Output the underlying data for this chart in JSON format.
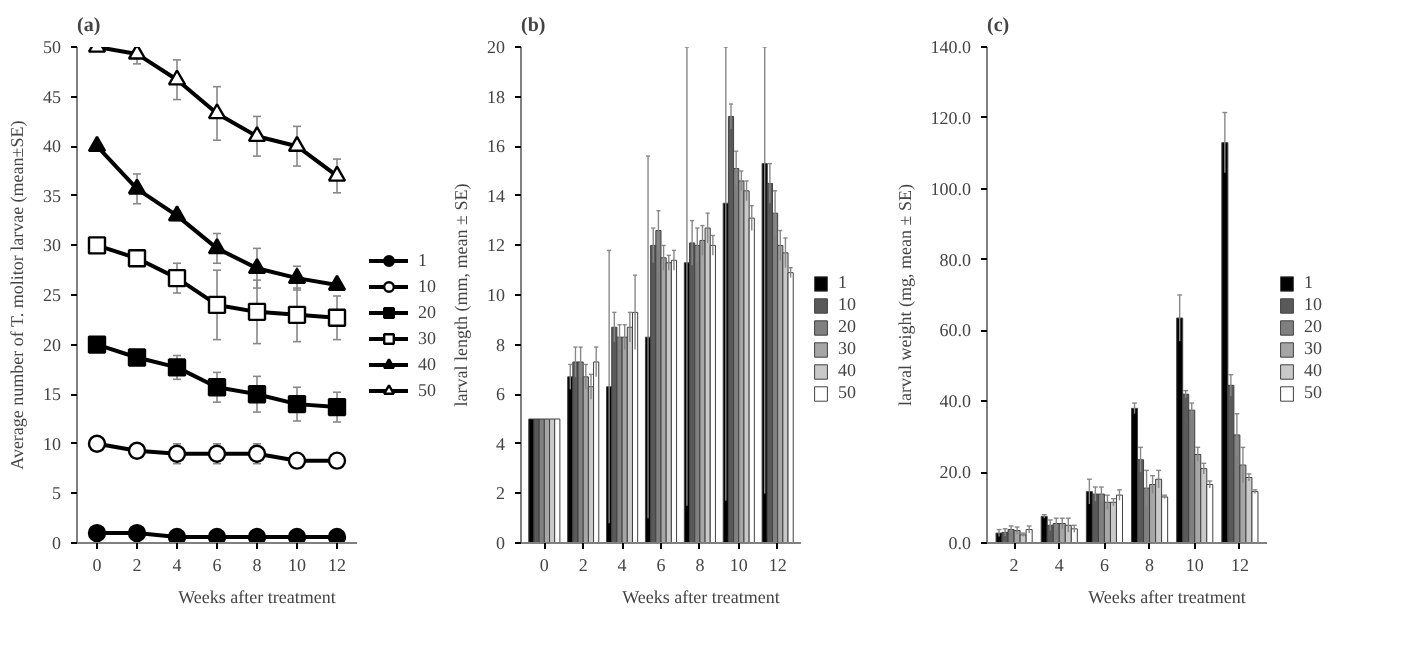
{
  "chart_data": [
    {
      "type": "line",
      "title": "(a)",
      "xlabel": "Weeks after treatment",
      "ylabel": "Average number of T. molitor larvae (mean±SE)",
      "x": [
        0,
        2,
        4,
        6,
        8,
        10,
        12
      ],
      "xlim": [
        -1,
        13
      ],
      "xticks": [
        0,
        2,
        4,
        6,
        8,
        10,
        12
      ],
      "ylim": [
        0,
        50
      ],
      "yticks": [
        0,
        5,
        10,
        15,
        20,
        25,
        30,
        35,
        40,
        45,
        50
      ],
      "legend": "right",
      "grid": false,
      "line_style": "solid",
      "series": [
        {
          "name": "1",
          "color": "#000000",
          "marker": "circle",
          "values": [
            1,
            1,
            0.6,
            0.6,
            0.6,
            0.6,
            0.6
          ]
        },
        {
          "name": "10",
          "color": "#ffffff",
          "marker": "circle",
          "values": [
            10,
            9.3,
            9,
            9,
            9,
            8.3,
            8.3
          ],
          "errors": [
            null,
            0.5,
            1,
            1,
            1,
            0.5,
            0.5
          ]
        },
        {
          "name": "20",
          "color": "#000000",
          "marker": "square",
          "values": [
            20,
            18.7,
            17.7,
            15.7,
            15,
            14,
            13.7
          ],
          "errors": [
            null,
            0.5,
            1.2,
            1.5,
            1.8,
            1.7,
            1.5
          ]
        },
        {
          "name": "30",
          "color": "#ffffff",
          "marker": "square",
          "values": [
            30,
            28.7,
            26.7,
            24,
            23.3,
            23,
            22.7
          ],
          "errors": [
            null,
            0.5,
            1.5,
            3.5,
            3.2,
            2.7,
            2.2
          ]
        },
        {
          "name": "40",
          "color": "#000000",
          "marker": "triangle",
          "values": [
            40,
            35.7,
            33,
            29.7,
            27.7,
            26.7,
            26
          ],
          "errors": [
            null,
            1.5,
            0.5,
            1.5,
            2,
            1.2,
            0.3
          ]
        },
        {
          "name": "50",
          "color": "#ffffff",
          "marker": "triangle",
          "values": [
            50,
            49.3,
            46.7,
            43.3,
            41,
            40,
            37
          ],
          "errors": [
            null,
            1,
            2,
            2.7,
            2,
            2,
            1.7
          ]
        }
      ]
    },
    {
      "type": "bar",
      "title": "(b)",
      "xlabel": "Weeks after treatment",
      "ylabel": "larval length (mm, mean ± SE)",
      "categories": [
        "0",
        "2",
        "4",
        "6",
        "8",
        "10",
        "12"
      ],
      "ylim": [
        0,
        20
      ],
      "yticks": [
        0,
        2,
        4,
        6,
        8,
        10,
        12,
        14,
        16,
        18,
        20
      ],
      "legend": "right",
      "grid": false,
      "series": [
        {
          "name": "1",
          "color": "#000000",
          "values": [
            5,
            6.7,
            6.3,
            8.3,
            11.3,
            13.7,
            15.3
          ],
          "errors": [
            null,
            0.5,
            [
              0.8,
              11.8
            ],
            [
              1,
              15.6
            ],
            [
              1.5,
              20
            ],
            [
              1.7,
              20
            ],
            [
              2,
              20
            ]
          ]
        },
        {
          "name": "10",
          "color": "#595959",
          "values": [
            5,
            7.3,
            8.7,
            12,
            12.1,
            17.2,
            14.5
          ],
          "errors": [
            null,
            0.6,
            0.6,
            0.7,
            0.9,
            0.5,
            0.8
          ]
        },
        {
          "name": "20",
          "color": "#808080",
          "values": [
            5,
            7.3,
            8.3,
            12.6,
            12,
            15.1,
            13.3
          ],
          "errors": [
            null,
            0.6,
            0.5,
            0.8,
            0.7,
            0.7,
            0.9
          ]
        },
        {
          "name": "30",
          "color": "#a6a6a6",
          "values": [
            5,
            6.7,
            8.3,
            11.5,
            12.2,
            14.6,
            12
          ],
          "errors": [
            null,
            0.5,
            0.5,
            0.5,
            0.6,
            0.4,
            0.6
          ]
        },
        {
          "name": "40",
          "color": "#c9c9c9",
          "values": [
            5,
            6.3,
            8.7,
            11.3,
            12.7,
            14.2,
            11.7
          ],
          "errors": [
            null,
            0.5,
            0.6,
            0.3,
            0.6,
            0.4,
            0.6
          ]
        },
        {
          "name": "50",
          "color": "#ffffff",
          "values": [
            5,
            7.3,
            9.3,
            11.4,
            12,
            13.1,
            10.9
          ],
          "errors": [
            null,
            0.6,
            1.5,
            0.4,
            0.4,
            0.5,
            0.2
          ]
        }
      ]
    },
    {
      "type": "bar",
      "title": "(c)",
      "xlabel": "Weeks after treatment",
      "ylabel": "larval weight (mg, mean ± SE)",
      "categories": [
        "2",
        "4",
        "6",
        "8",
        "10",
        "12"
      ],
      "ylim": [
        0,
        140
      ],
      "yticks": [
        {
          "value": 0,
          "label": "0.0"
        },
        {
          "value": 20,
          "label": "20.0"
        },
        {
          "value": 40,
          "label": "40.0"
        },
        {
          "value": 60,
          "label": "60.0"
        },
        {
          "value": 80,
          "label": "80.0"
        },
        {
          "value": 100,
          "label": "100.0"
        },
        {
          "value": 120,
          "label": "120.0"
        },
        {
          "value": 140,
          "label": "140.0"
        }
      ],
      "legend": "right",
      "grid": false,
      "series": [
        {
          "name": "1",
          "color": "#000000",
          "values": [
            2.8,
            7.5,
            14.5,
            38,
            63.5,
            113
          ],
          "errors": [
            1,
            0.5,
            3.5,
            1.5,
            6.5,
            8.5
          ]
        },
        {
          "name": "10",
          "color": "#595959",
          "values": [
            3,
            5,
            13.8,
            23.5,
            42,
            44.5
          ],
          "errors": [
            1,
            1.5,
            2,
            3.5,
            1,
            3
          ]
        },
        {
          "name": "20",
          "color": "#808080",
          "values": [
            3.8,
            5.5,
            13.8,
            15.5,
            37.5,
            30.5
          ],
          "errors": [
            1,
            1.5,
            2,
            5,
            2,
            6
          ]
        },
        {
          "name": "30",
          "color": "#a6a6a6",
          "values": [
            3.5,
            5.5,
            11.5,
            16.5,
            25,
            22
          ],
          "errors": [
            1,
            1.5,
            2,
            2.5,
            2,
            5
          ]
        },
        {
          "name": "40",
          "color": "#c9c9c9",
          "values": [
            2.3,
            5,
            11.5,
            18,
            21,
            18.5
          ],
          "errors": [
            0.5,
            2,
            1,
            2.5,
            1.5,
            1
          ]
        },
        {
          "name": "50",
          "color": "#ffffff",
          "values": [
            3.8,
            4,
            13.5,
            13,
            16.5,
            14.5
          ],
          "errors": [
            1,
            1,
            1.5,
            0.5,
            1,
            0.5
          ]
        }
      ]
    }
  ]
}
